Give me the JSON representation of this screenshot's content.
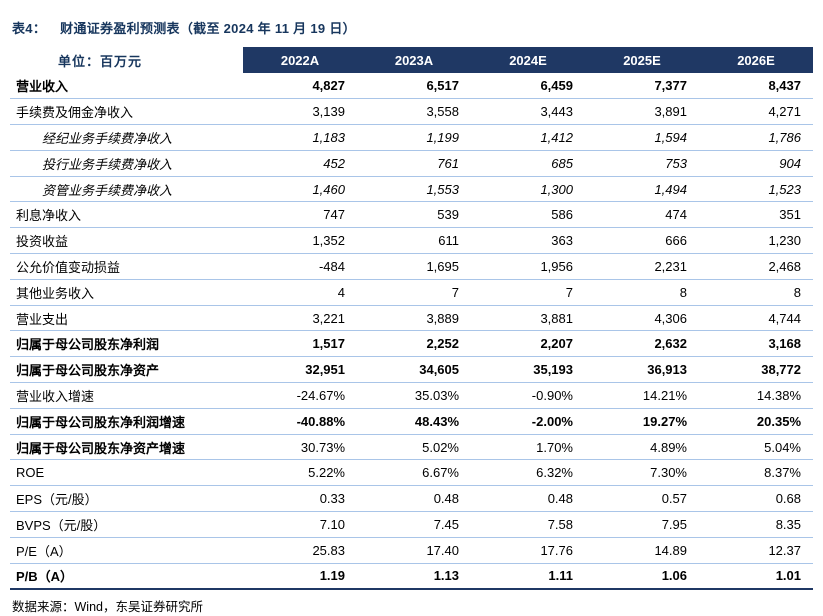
{
  "title": {
    "prefix": "表4：",
    "text": "财通证券盈利预测表（截至 2024 年 11 月 19 日）"
  },
  "table": {
    "unit_label": "单位：百万元",
    "columns": [
      "2022A",
      "2023A",
      "2024E",
      "2025E",
      "2026E"
    ],
    "rows": [
      {
        "label": "营业收入",
        "bold": true,
        "values": [
          "4,827",
          "6,517",
          "6,459",
          "7,377",
          "8,437"
        ]
      },
      {
        "label": "手续费及佣金净收入",
        "values": [
          "3,139",
          "3,558",
          "3,443",
          "3,891",
          "4,271"
        ]
      },
      {
        "label": "经纪业务手续费净收入",
        "indent": true,
        "italic": true,
        "values": [
          "1,183",
          "1,199",
          "1,412",
          "1,594",
          "1,786"
        ]
      },
      {
        "label": "投行业务手续费净收入",
        "indent": true,
        "italic": true,
        "values": [
          "452",
          "761",
          "685",
          "753",
          "904"
        ]
      },
      {
        "label": "资管业务手续费净收入",
        "indent": true,
        "italic": true,
        "values": [
          "1,460",
          "1,553",
          "1,300",
          "1,494",
          "1,523"
        ]
      },
      {
        "label": "利息净收入",
        "values": [
          "747",
          "539",
          "586",
          "474",
          "351"
        ]
      },
      {
        "label": "投资收益",
        "values": [
          "1,352",
          "611",
          "363",
          "666",
          "1,230"
        ]
      },
      {
        "label": "公允价值变动损益",
        "values": [
          "-484",
          "1,695",
          "1,956",
          "2,231",
          "2,468"
        ]
      },
      {
        "label": "其他业务收入",
        "values": [
          "4",
          "7",
          "7",
          "8",
          "8"
        ]
      },
      {
        "label": "营业支出",
        "values": [
          "3,221",
          "3,889",
          "3,881",
          "4,306",
          "4,744"
        ]
      },
      {
        "label": "归属于母公司股东净利润",
        "bold": true,
        "values": [
          "1,517",
          "2,252",
          "2,207",
          "2,632",
          "3,168"
        ]
      },
      {
        "label": "归属于母公司股东净资产",
        "bold": true,
        "values": [
          "32,951",
          "34,605",
          "35,193",
          "36,913",
          "38,772"
        ]
      },
      {
        "label": "营业收入增速",
        "values": [
          "-24.67%",
          "35.03%",
          "-0.90%",
          "14.21%",
          "14.38%"
        ]
      },
      {
        "label": "归属于母公司股东净利润增速",
        "bold": true,
        "values": [
          "-40.88%",
          "48.43%",
          "-2.00%",
          "19.27%",
          "20.35%"
        ]
      },
      {
        "label": "归属于母公司股东净资产增速",
        "label_bold": true,
        "values": [
          "30.73%",
          "5.02%",
          "1.70%",
          "4.89%",
          "5.04%"
        ]
      },
      {
        "label": "ROE",
        "values": [
          "5.22%",
          "6.67%",
          "6.32%",
          "7.30%",
          "8.37%"
        ]
      },
      {
        "label": "EPS（元/股）",
        "values": [
          "0.33",
          "0.48",
          "0.48",
          "0.57",
          "0.68"
        ]
      },
      {
        "label": "BVPS（元/股）",
        "values": [
          "7.10",
          "7.45",
          "7.58",
          "7.95",
          "8.35"
        ]
      },
      {
        "label": "P/E（A）",
        "values": [
          "25.83",
          "17.40",
          "17.76",
          "14.89",
          "12.37"
        ]
      },
      {
        "label": "P/B（A）",
        "bold": true,
        "values": [
          "1.19",
          "1.13",
          "1.11",
          "1.06",
          "1.01"
        ]
      }
    ]
  },
  "footer": {
    "source": "数据来源：Wind，东吴证券研究所"
  },
  "colors": {
    "header_bg": "#1F3864",
    "title_text": "#17365D",
    "row_border": "#A9C5E8"
  }
}
